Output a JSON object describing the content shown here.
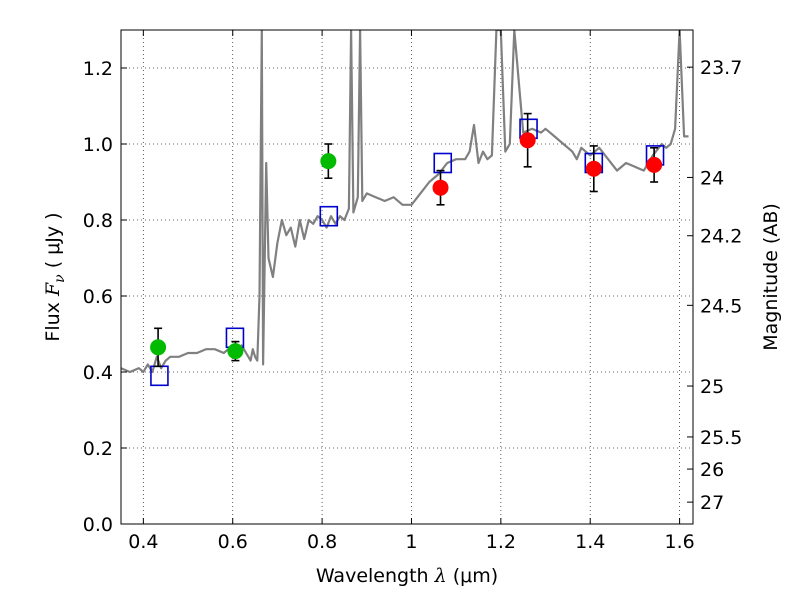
{
  "chart_data": {
    "type": "scatter",
    "xlabel": "Wavelength",
    "xlabel_symbol": "λ",
    "xlabel_unit": "(μm)",
    "ylabel": "Flux",
    "ylabel_symbol": "F",
    "ylabel_symbol_sub": "ν",
    "ylabel_unit": "( μJy )",
    "y2label": "Magnitude (AB)",
    "xlim": [
      0.35,
      1.63
    ],
    "ylim": [
      0.0,
      1.3
    ],
    "grid": true,
    "x_ticks": [
      {
        "value": 0.4,
        "label": "0.4"
      },
      {
        "value": 0.6,
        "label": "0.6"
      },
      {
        "value": 0.8,
        "label": "0.8"
      },
      {
        "value": 1.0,
        "label": "1"
      },
      {
        "value": 1.2,
        "label": "1.2"
      },
      {
        "value": 1.4,
        "label": "1.4"
      },
      {
        "value": 1.6,
        "label": "1.6"
      }
    ],
    "y_ticks": [
      {
        "value": 0.0,
        "label": "0.0"
      },
      {
        "value": 0.2,
        "label": "0.2"
      },
      {
        "value": 0.4,
        "label": "0.4"
      },
      {
        "value": 0.6,
        "label": "0.6"
      },
      {
        "value": 0.8,
        "label": "0.8"
      },
      {
        "value": 1.0,
        "label": "1.0"
      },
      {
        "value": 1.2,
        "label": "1.2"
      }
    ],
    "y2_ticks": [
      {
        "mag": 23.7,
        "label": "23.7"
      },
      {
        "mag": 24.0,
        "label": "24"
      },
      {
        "mag": 24.2,
        "label": "24.2"
      },
      {
        "mag": 24.5,
        "label": "24.5"
      },
      {
        "mag": 25.0,
        "label": "25"
      },
      {
        "mag": 25.5,
        "label": "25.5"
      },
      {
        "mag": 26.0,
        "label": "26"
      },
      {
        "mag": 27.0,
        "label": "27"
      }
    ],
    "series": [
      {
        "name": "model_spectrum",
        "kind": "line",
        "color": "#808080",
        "x": [
          0.35,
          0.37,
          0.39,
          0.4,
          0.41,
          0.42,
          0.43,
          0.44,
          0.45,
          0.46,
          0.48,
          0.5,
          0.52,
          0.54,
          0.56,
          0.58,
          0.6,
          0.61,
          0.62,
          0.63,
          0.64,
          0.645,
          0.65,
          0.655,
          0.66,
          0.665,
          0.668,
          0.675,
          0.68,
          0.69,
          0.7,
          0.71,
          0.72,
          0.73,
          0.74,
          0.75,
          0.76,
          0.77,
          0.78,
          0.79,
          0.8,
          0.81,
          0.82,
          0.83,
          0.84,
          0.85,
          0.86,
          0.865,
          0.87,
          0.88,
          0.885,
          0.89,
          0.9,
          0.92,
          0.94,
          0.96,
          0.98,
          1.0,
          1.02,
          1.04,
          1.06,
          1.08,
          1.1,
          1.12,
          1.13,
          1.14,
          1.15,
          1.16,
          1.17,
          1.18,
          1.19,
          1.2,
          1.21,
          1.22,
          1.23,
          1.25,
          1.27,
          1.29,
          1.3,
          1.32,
          1.34,
          1.36,
          1.37,
          1.38,
          1.4,
          1.42,
          1.44,
          1.46,
          1.48,
          1.5,
          1.52,
          1.54,
          1.56,
          1.57,
          1.58,
          1.59,
          1.6,
          1.61,
          1.62
        ],
        "y": [
          0.41,
          0.4,
          0.41,
          0.4,
          0.42,
          0.4,
          0.44,
          0.41,
          0.43,
          0.44,
          0.44,
          0.45,
          0.45,
          0.46,
          0.46,
          0.45,
          0.47,
          0.44,
          0.47,
          0.45,
          0.43,
          0.46,
          0.44,
          0.43,
          0.6,
          1.3,
          0.42,
          0.95,
          0.7,
          0.65,
          0.74,
          0.8,
          0.76,
          0.78,
          0.73,
          0.8,
          0.75,
          0.8,
          0.79,
          0.81,
          0.8,
          0.78,
          0.81,
          0.79,
          0.81,
          0.8,
          0.83,
          1.3,
          0.82,
          0.86,
          1.3,
          0.85,
          0.87,
          0.86,
          0.85,
          0.86,
          0.84,
          0.84,
          0.87,
          0.9,
          0.92,
          0.95,
          0.96,
          0.96,
          0.98,
          1.05,
          0.95,
          0.98,
          0.96,
          0.97,
          1.3,
          1.3,
          0.98,
          1.0,
          1.3,
          1.03,
          1.04,
          1.03,
          1.04,
          1.02,
          1.0,
          0.98,
          0.96,
          0.99,
          0.97,
          0.99,
          0.96,
          0.93,
          0.95,
          0.94,
          0.93,
          0.97,
          1.0,
          0.99,
          1.0,
          1.04,
          1.3,
          1.02,
          1.02
        ]
      },
      {
        "name": "model_photometry",
        "kind": "open_square",
        "color": "#0000cc",
        "x": [
          0.436,
          0.605,
          0.815,
          1.07,
          1.262,
          1.408,
          1.545
        ],
        "y": [
          0.39,
          0.49,
          0.81,
          0.95,
          1.04,
          0.95,
          0.97
        ]
      },
      {
        "name": "optical_observed",
        "kind": "filled_circle",
        "color": "#00bb00",
        "x": [
          0.433,
          0.606,
          0.814
        ],
        "y": [
          0.465,
          0.455,
          0.955
        ],
        "yerr": [
          0.05,
          0.025,
          0.045
        ]
      },
      {
        "name": "nir_observed",
        "kind": "filled_circle",
        "color": "#ff0000",
        "x": [
          1.065,
          1.26,
          1.408,
          1.543
        ],
        "y": [
          0.885,
          1.01,
          0.935,
          0.945
        ],
        "yerr": [
          0.045,
          0.07,
          0.06,
          0.045
        ]
      }
    ]
  }
}
